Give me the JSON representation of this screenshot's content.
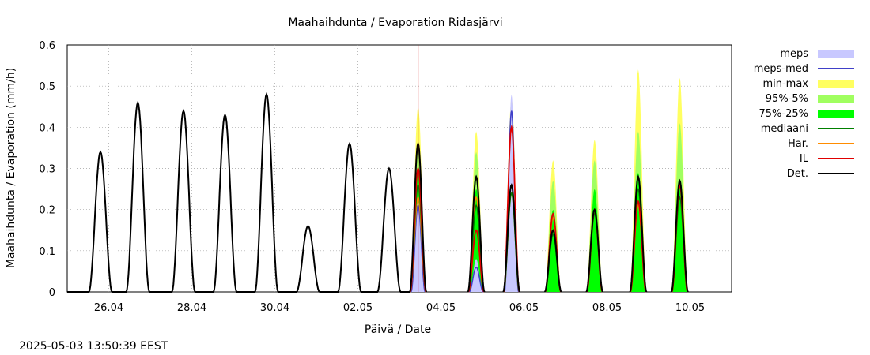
{
  "chart_data": {
    "type": "area",
    "title": "Maahaihdunta / Evaporation  Ridasjärvi",
    "xlabel": "Päivä / Date",
    "ylabel": "Maahaihdunta / Evaporation (mm/h)",
    "ylim": [
      0,
      0.6
    ],
    "yticks": [
      "0",
      "0.1",
      "0.2",
      "0.3",
      "0.4",
      "0.5",
      "0.6"
    ],
    "xlim_days": [
      0,
      16
    ],
    "xticks": [
      {
        "label": "26.04",
        "day": 1
      },
      {
        "label": "28.04",
        "day": 3
      },
      {
        "label": "30.04",
        "day": 5
      },
      {
        "label": "02.05",
        "day": 7
      },
      {
        "label": "04.05",
        "day": 9
      },
      {
        "label": "06.05",
        "day": 11
      },
      {
        "label": "08.05",
        "day": 13
      },
      {
        "label": "10.05",
        "day": 15
      }
    ],
    "grid": true,
    "legend_position": "right",
    "forecast_start_day": 8.45,
    "legend": [
      {
        "key": "meps",
        "label": "meps",
        "kind": "box",
        "color": "#c8c8ff"
      },
      {
        "key": "meps_med",
        "label": "meps-med",
        "kind": "line",
        "color": "#4040c8"
      },
      {
        "key": "minmax",
        "label": "min-max",
        "kind": "box",
        "color": "#ffff60"
      },
      {
        "key": "p95",
        "label": "95%-5%",
        "kind": "box",
        "color": "#a0ff60"
      },
      {
        "key": "p75",
        "label": "75%-25%",
        "kind": "box",
        "color": "#00ff00"
      },
      {
        "key": "median",
        "label": "mediaani",
        "kind": "line",
        "color": "#008000"
      },
      {
        "key": "har",
        "label": "Har.",
        "kind": "line",
        "color": "#ff8c00"
      },
      {
        "key": "il",
        "label": "IL",
        "kind": "line",
        "color": "#e00000"
      },
      {
        "key": "det",
        "label": "Det.",
        "kind": "line",
        "color": "#000000"
      }
    ],
    "observed_peaks": [
      {
        "day": 0.8,
        "value": 0.34
      },
      {
        "day": 1.7,
        "value": 0.46
      },
      {
        "day": 2.8,
        "value": 0.44
      },
      {
        "day": 3.8,
        "value": 0.43
      },
      {
        "day": 4.8,
        "value": 0.48
      },
      {
        "day": 5.8,
        "value": 0.16
      },
      {
        "day": 6.8,
        "value": 0.36
      },
      {
        "day": 7.75,
        "value": 0.3
      }
    ],
    "forecast_days": [
      {
        "day": 8.45,
        "det": 0.36,
        "il": 0.3,
        "har": 0.23,
        "median": 0.26,
        "p75": 0.29,
        "p95": 0.36,
        "minmax": 0.45,
        "meps": 0.22,
        "meps_med": 0.21
      },
      {
        "day": 9.85,
        "det": 0.28,
        "il": 0.15,
        "har": 0.23,
        "median": 0.21,
        "p75": 0.25,
        "p95": 0.34,
        "minmax": 0.39,
        "meps": 0.08,
        "meps_med": 0.06
      },
      {
        "day": 10.7,
        "det": 0.26,
        "il": 0.4,
        "har": 0.24,
        "median": 0.24,
        "p75": 0.26,
        "p95": 0.34,
        "minmax": 0.47,
        "meps": 0.48,
        "meps_med": 0.44
      },
      {
        "day": 11.7,
        "det": 0.15,
        "il": 0.19,
        "har": 0.18,
        "median": 0.14,
        "p75": 0.2,
        "p95": 0.27,
        "minmax": 0.32,
        "meps": 0,
        "meps_med": 0
      },
      {
        "day": 12.7,
        "det": 0.2,
        "il": 0.2,
        "har": 0.2,
        "median": 0.19,
        "p75": 0.25,
        "p95": 0.32,
        "minmax": 0.37,
        "meps": 0,
        "meps_med": 0
      },
      {
        "day": 13.75,
        "det": 0.28,
        "il": 0.22,
        "har": 0.21,
        "median": 0.25,
        "p75": 0.29,
        "p95": 0.39,
        "minmax": 0.54,
        "meps": 0,
        "meps_med": 0
      },
      {
        "day": 14.75,
        "det": 0.27,
        "il": 0.26,
        "har": 0.26,
        "median": 0.23,
        "p75": 0.27,
        "p95": 0.41,
        "minmax": 0.52,
        "meps": 0,
        "meps_med": 0
      }
    ]
  },
  "footer": {
    "timestamp": "2025-05-03 13:50:39 EEST"
  }
}
